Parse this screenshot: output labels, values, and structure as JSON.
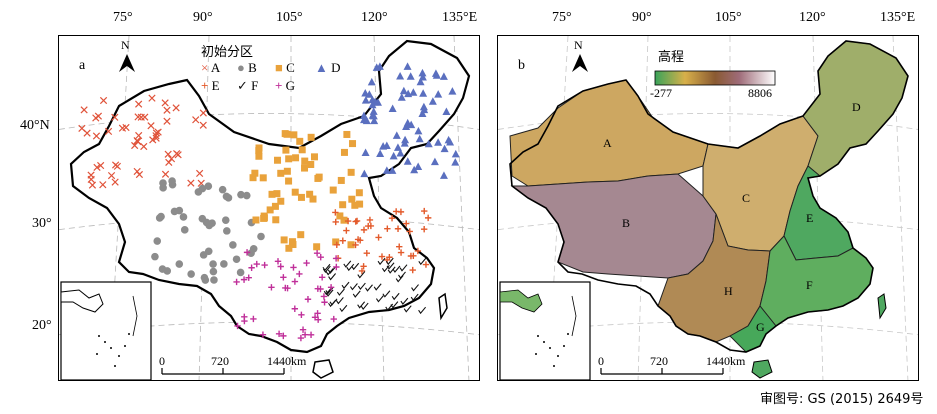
{
  "top_lon_labels_a": [
    "75°",
    "90°",
    "105°",
    "120°",
    "135°E"
  ],
  "top_lon_labels_b": [
    "75°",
    "90°",
    "105°",
    "120°",
    "135°E"
  ],
  "lat_labels": [
    "40°N",
    "30°",
    "20°"
  ],
  "panel_a": {
    "letter": "a",
    "north": "N",
    "legend_title": "初始分区",
    "legend": [
      {
        "symbol": "×",
        "label": "A",
        "color": "#e0533a"
      },
      {
        "symbol": "●",
        "label": "B",
        "color": "#8c8c8c"
      },
      {
        "symbol": "■",
        "label": "C",
        "color": "#e9a23b"
      },
      {
        "symbol": "▲",
        "label": "D",
        "color": "#5a6fbf"
      },
      {
        "symbol": "+",
        "label": "E",
        "color": "#e35a2b"
      },
      {
        "symbol": "✓",
        "label": "F",
        "color": "#111111"
      },
      {
        "symbol": "+",
        "label": "G",
        "color": "#c0309a"
      }
    ],
    "scale": [
      "0",
      "720",
      "1440km"
    ]
  },
  "panel_b": {
    "letter": "b",
    "north": "N",
    "elev_title": "高程",
    "elev_min": "-277",
    "elev_max": "8806",
    "regions": [
      "A",
      "B",
      "C",
      "D",
      "E",
      "F",
      "G",
      "H"
    ],
    "scale": [
      "0",
      "720",
      "1440km"
    ]
  },
  "approval": "审图号: GS (2015) 2649号"
}
